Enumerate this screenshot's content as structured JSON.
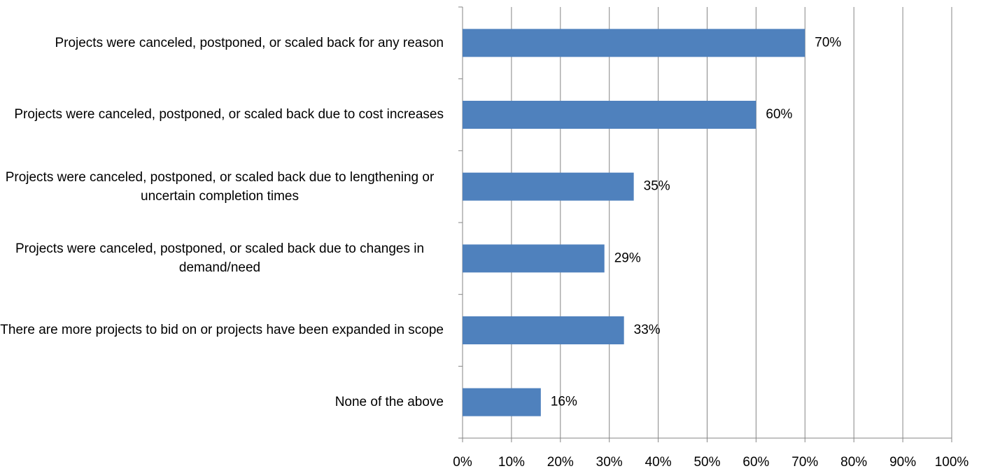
{
  "chart_data": {
    "type": "bar",
    "orientation": "horizontal",
    "categories": [
      "Projects were canceled, postponed, or scaled back for any reason",
      "Projects were canceled, postponed, or scaled back due to cost increases",
      "Projects were canceled, postponed, or scaled back due to lengthening or uncertain completion times",
      "Projects were canceled, postponed, or scaled back due to changes in demand/need",
      "There are more projects to bid on or projects have been expanded in scope",
      "None of the above"
    ],
    "values": [
      70,
      60,
      35,
      29,
      33,
      16
    ],
    "value_labels": [
      "70%",
      "60%",
      "35%",
      "29%",
      "33%",
      "16%"
    ],
    "color": "#4f81bd",
    "xlim": [
      0,
      100
    ],
    "xticks": [
      {
        "value": 0,
        "label": "0%"
      },
      {
        "value": 10,
        "label": "10%"
      },
      {
        "value": 20,
        "label": "20%"
      },
      {
        "value": 30,
        "label": "30%"
      },
      {
        "value": 40,
        "label": "40%"
      },
      {
        "value": 50,
        "label": "50%"
      },
      {
        "value": 60,
        "label": "60%"
      },
      {
        "value": 70,
        "label": "70%"
      },
      {
        "value": 80,
        "label": "80%"
      },
      {
        "value": 90,
        "label": "90%"
      },
      {
        "value": 100,
        "label": "100%"
      }
    ],
    "grid": true
  }
}
